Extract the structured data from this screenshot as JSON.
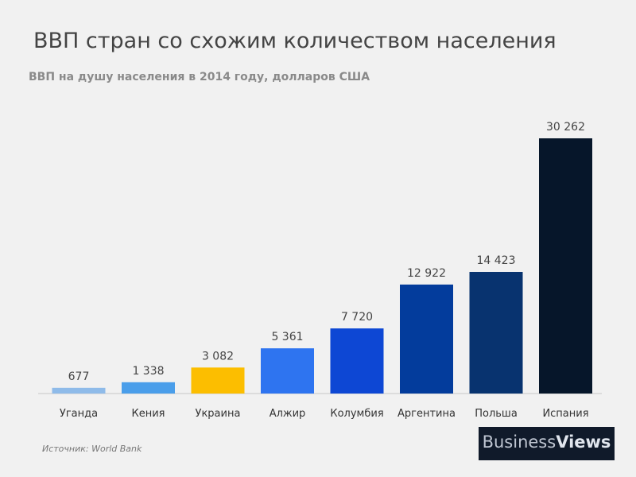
{
  "header": {
    "title": "ВВП стран со схожим количеством населения",
    "subtitle": "ВВП на душу населения в 2014 году, долларов США"
  },
  "footer": {
    "source": "Источник: World Bank",
    "logo_part1": "Business",
    "logo_part2": "Views"
  },
  "chart_data": {
    "type": "bar",
    "title": "ВВП стран со схожим количеством населения",
    "subtitle": "ВВП на душу населения в 2014 году, долларов США",
    "xlabel": "",
    "ylabel": "",
    "ylim": [
      0,
      30262
    ],
    "grid": false,
    "categories": [
      "Уганда",
      "Кения",
      "Украина",
      "Алжир",
      "Колумбия",
      "Аргентина",
      "Польша",
      "Испания"
    ],
    "values": [
      677,
      1338,
      3082,
      5361,
      7720,
      12922,
      14423,
      30262
    ],
    "value_labels": [
      "677",
      "1 338",
      "3 082",
      "5 361",
      "7 720",
      "12 922",
      "14 423",
      "30 262"
    ],
    "colors": [
      "#8fbbe9",
      "#4a9eea",
      "#fcbe00",
      "#2e74f0",
      "#0d47d4",
      "#033c9c",
      "#08336f",
      "#06162a"
    ]
  }
}
